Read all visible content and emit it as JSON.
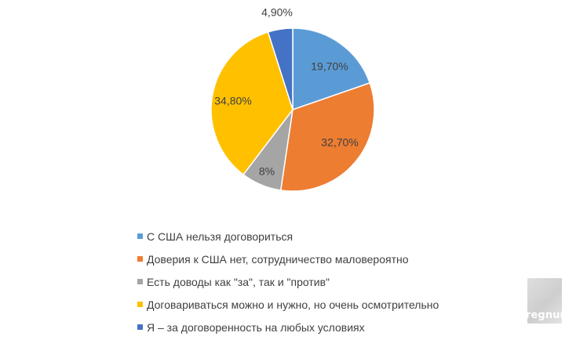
{
  "chart_data": {
    "type": "pie",
    "title": "",
    "start_angle": 0,
    "direction": "clockwise",
    "legend_position": "bottom",
    "categories": [
      "С США нельзя договориться",
      "Доверия к США нет, сотрудничество маловероятно",
      "Есть доводы как \"за\", так и \"против\"",
      "Договариваться можно и нужно, но очень осмотрительно",
      "Я – за договоренность на любых условиях"
    ],
    "values": [
      19.7,
      32.7,
      8,
      34.8,
      4.9
    ],
    "data_labels": [
      "19,70%",
      "32,70%",
      "8%",
      "34,80%",
      "4,90%"
    ],
    "colors": [
      "#5B9BD5",
      "#ED7D31",
      "#A5A5A5",
      "#FFC000",
      "#4472C4"
    ]
  },
  "watermark": {
    "text": "regnum"
  }
}
